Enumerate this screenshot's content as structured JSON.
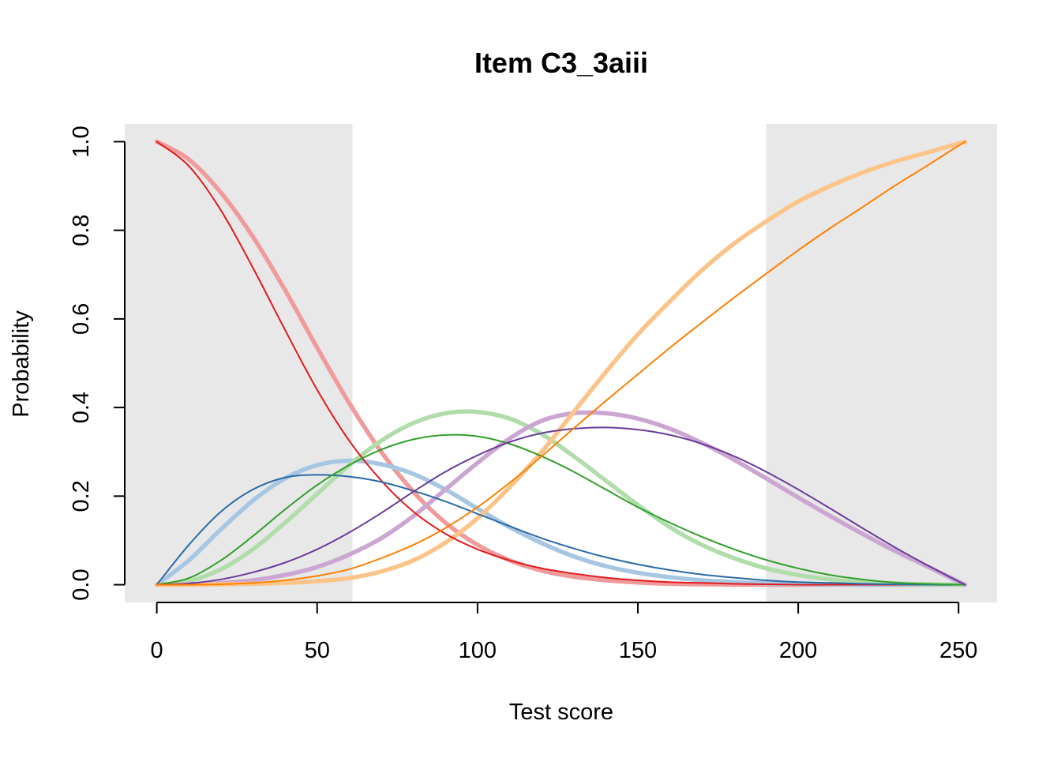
{
  "chart_data": {
    "type": "line",
    "title": "Item C3_3aiii",
    "xlabel": "Test score",
    "ylabel": "Probability",
    "xlim": [
      -10,
      262
    ],
    "ylim": [
      -0.04,
      1.04
    ],
    "xticks": [
      0,
      50,
      100,
      150,
      200,
      250
    ],
    "yticks": [
      0.0,
      0.2,
      0.4,
      0.6,
      0.8,
      1.0
    ],
    "ytick_labels": [
      "0.0",
      "0.2",
      "0.4",
      "0.6",
      "0.8",
      "1.0"
    ],
    "shaded_regions": [
      {
        "from": -10,
        "to": 61,
        "color": "#e8e8e8"
      },
      {
        "from": 190,
        "to": 262,
        "color": "#e8e8e8"
      }
    ],
    "x": [
      0,
      10,
      20,
      30,
      40,
      50,
      60,
      70,
      80,
      90,
      100,
      110,
      120,
      130,
      140,
      150,
      160,
      170,
      180,
      190,
      200,
      210,
      220,
      230,
      240,
      252
    ],
    "series": [
      {
        "style": "thick",
        "color": "#f09a9b",
        "values": [
          1.0,
          0.96,
          0.885,
          0.785,
          0.665,
          0.535,
          0.41,
          0.3,
          0.21,
          0.14,
          0.09,
          0.055,
          0.032,
          0.018,
          0.01,
          0.005,
          0.002,
          0.001,
          0.0,
          0.0,
          0.0,
          0.0,
          0.0,
          0.0,
          0.0,
          0.0
        ]
      },
      {
        "style": "thin",
        "color": "#e31a1c",
        "values": [
          1.0,
          0.945,
          0.845,
          0.715,
          0.575,
          0.44,
          0.325,
          0.235,
          0.165,
          0.115,
          0.08,
          0.055,
          0.037,
          0.025,
          0.016,
          0.01,
          0.006,
          0.004,
          0.002,
          0.001,
          0.0,
          0.0,
          0.0,
          0.0,
          0.0,
          0.0
        ]
      },
      {
        "style": "thick",
        "color": "#a6c6e2",
        "values": [
          0.0,
          0.055,
          0.125,
          0.19,
          0.24,
          0.27,
          0.28,
          0.272,
          0.25,
          0.215,
          0.172,
          0.13,
          0.094,
          0.064,
          0.042,
          0.027,
          0.017,
          0.01,
          0.006,
          0.003,
          0.002,
          0.001,
          0.0,
          0.0,
          0.0,
          0.0
        ]
      },
      {
        "style": "thin",
        "color": "#2c6aa7",
        "values": [
          0.0,
          0.09,
          0.165,
          0.215,
          0.242,
          0.248,
          0.244,
          0.232,
          0.212,
          0.188,
          0.16,
          0.132,
          0.105,
          0.082,
          0.062,
          0.046,
          0.033,
          0.023,
          0.016,
          0.01,
          0.006,
          0.004,
          0.002,
          0.001,
          0.0,
          0.0
        ]
      },
      {
        "style": "thick",
        "color": "#b0ddaa",
        "values": [
          0.0,
          0.008,
          0.035,
          0.08,
          0.14,
          0.205,
          0.27,
          0.325,
          0.365,
          0.387,
          0.39,
          0.375,
          0.34,
          0.29,
          0.235,
          0.18,
          0.13,
          0.09,
          0.06,
          0.037,
          0.022,
          0.012,
          0.006,
          0.003,
          0.001,
          0.0
        ]
      },
      {
        "style": "thin",
        "color": "#33a02c",
        "values": [
          0.0,
          0.015,
          0.055,
          0.11,
          0.17,
          0.225,
          0.27,
          0.305,
          0.328,
          0.338,
          0.335,
          0.318,
          0.29,
          0.255,
          0.215,
          0.175,
          0.14,
          0.108,
          0.08,
          0.056,
          0.037,
          0.022,
          0.012,
          0.005,
          0.002,
          0.0
        ]
      },
      {
        "style": "thick",
        "color": "#cba6d3",
        "values": [
          0.0,
          0.001,
          0.004,
          0.01,
          0.022,
          0.04,
          0.068,
          0.105,
          0.155,
          0.215,
          0.275,
          0.33,
          0.37,
          0.387,
          0.387,
          0.375,
          0.352,
          0.32,
          0.282,
          0.24,
          0.197,
          0.155,
          0.115,
          0.077,
          0.042,
          0.0
        ]
      },
      {
        "style": "thin",
        "color": "#6a3d9a",
        "values": [
          0.0,
          0.003,
          0.012,
          0.028,
          0.05,
          0.08,
          0.118,
          0.162,
          0.21,
          0.255,
          0.292,
          0.322,
          0.342,
          0.352,
          0.355,
          0.35,
          0.338,
          0.318,
          0.29,
          0.255,
          0.215,
          0.172,
          0.128,
          0.085,
          0.045,
          0.0
        ]
      },
      {
        "style": "thick",
        "color": "#fdc48a",
        "values": [
          0.0,
          0.0,
          0.001,
          0.002,
          0.004,
          0.008,
          0.015,
          0.03,
          0.055,
          0.095,
          0.15,
          0.22,
          0.3,
          0.39,
          0.48,
          0.565,
          0.64,
          0.71,
          0.77,
          0.82,
          0.865,
          0.9,
          0.93,
          0.955,
          0.975,
          1.0
        ]
      },
      {
        "style": "thin",
        "color": "#ff7f00",
        "values": [
          0.0,
          0.0,
          0.001,
          0.004,
          0.01,
          0.02,
          0.035,
          0.06,
          0.09,
          0.128,
          0.175,
          0.23,
          0.29,
          0.353,
          0.415,
          0.475,
          0.535,
          0.592,
          0.648,
          0.702,
          0.755,
          0.805,
          0.852,
          0.9,
          0.945,
          1.0
        ]
      }
    ]
  }
}
